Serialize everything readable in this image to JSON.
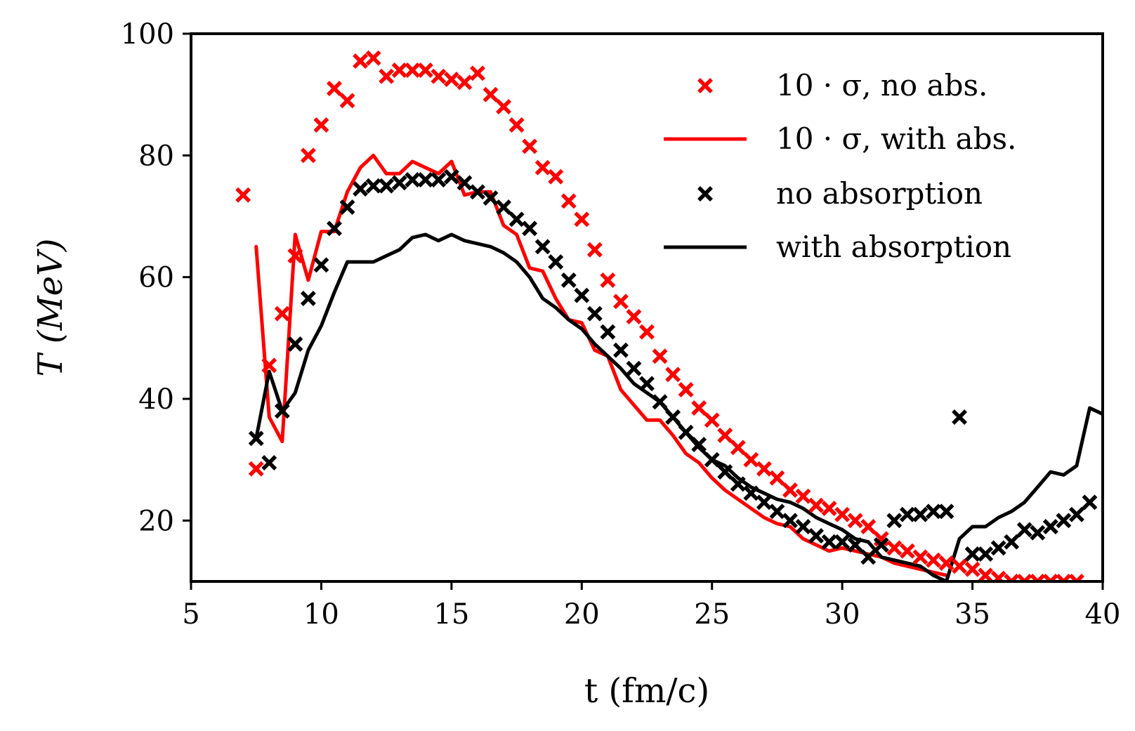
{
  "chart_data": {
    "type": "line",
    "title": "",
    "xlabel": "t (fm/c)",
    "ylabel": "T (MeV)",
    "xlim": [
      5,
      40
    ],
    "ylim": [
      10,
      100
    ],
    "xticks": [
      5,
      10,
      15,
      20,
      25,
      30,
      35,
      40
    ],
    "yticks": [
      20,
      40,
      60,
      80,
      100
    ],
    "grid": false,
    "legend_position": "top-right",
    "colors": {
      "red": "#ff0000",
      "black": "#000000",
      "axis": "#000000"
    },
    "series": [
      {
        "name": "10 · σ, no abs.",
        "style": "markers",
        "marker": "x",
        "color": "#ff0000",
        "x": [
          7.0,
          7.5,
          8.0,
          8.5,
          9.0,
          9.5,
          10.0,
          10.5,
          11.0,
          11.5,
          12.0,
          12.5,
          13.0,
          13.5,
          14.0,
          14.5,
          15.0,
          15.5,
          16.0,
          16.5,
          17.0,
          17.5,
          18.0,
          18.5,
          19.0,
          19.5,
          20.0,
          20.5,
          21.0,
          21.5,
          22.0,
          22.5,
          23.0,
          23.5,
          24.0,
          24.5,
          25.0,
          25.5,
          26.0,
          26.5,
          27.0,
          27.5,
          28.0,
          28.5,
          29.0,
          29.5,
          30.0,
          30.5,
          31.0,
          31.5,
          32.0,
          32.5,
          33.0,
          33.5,
          34.0,
          34.5,
          35.0,
          35.5,
          36.0,
          36.5,
          37.0,
          37.5,
          38.0,
          38.5,
          39.0
        ],
        "y": [
          73.5,
          28.5,
          45.5,
          54.0,
          63.5,
          80.0,
          85.0,
          91.0,
          89.0,
          95.5,
          96.0,
          93.0,
          94.0,
          94.0,
          94.0,
          93.0,
          92.5,
          92.0,
          93.5,
          90.0,
          88.0,
          85.0,
          81.5,
          78.0,
          76.5,
          72.5,
          69.5,
          64.5,
          59.5,
          56.0,
          53.5,
          51.0,
          47.0,
          44.0,
          41.5,
          38.5,
          36.5,
          34.0,
          32.0,
          30.0,
          28.5,
          27.0,
          25.0,
          24.0,
          22.5,
          22.0,
          21.0,
          20.0,
          19.0,
          17.0,
          15.5,
          15.0,
          14.0,
          13.5,
          13.0,
          12.5,
          12.0,
          11.0,
          10.5,
          10.0,
          10.0,
          10.0,
          10.0,
          10.0,
          10.0
        ]
      },
      {
        "name": "10 · σ, with abs.",
        "style": "line",
        "color": "#ff0000",
        "x": [
          7.5,
          8.0,
          8.5,
          9.0,
          9.5,
          10.0,
          10.5,
          11.0,
          11.5,
          12.0,
          12.5,
          13.0,
          13.5,
          14.0,
          14.5,
          15.0,
          15.5,
          16.0,
          16.5,
          17.0,
          17.5,
          18.0,
          18.5,
          19.0,
          19.5,
          20.0,
          20.5,
          21.0,
          21.5,
          22.0,
          22.5,
          23.0,
          23.5,
          24.0,
          24.5,
          25.0,
          25.5,
          26.0,
          26.5,
          27.0,
          27.5,
          28.0,
          28.5,
          29.0,
          29.5,
          30.0,
          30.5,
          31.0,
          31.5,
          32.0,
          32.5,
          33.0,
          33.5,
          34.0
        ],
        "y": [
          65.0,
          37.0,
          33.0,
          67.0,
          59.5,
          67.5,
          67.5,
          74.0,
          78.0,
          80.0,
          77.0,
          77.0,
          79.0,
          78.0,
          77.0,
          79.0,
          73.5,
          74.0,
          74.0,
          68.5,
          67.0,
          61.5,
          61.0,
          56.5,
          53.0,
          52.5,
          48.0,
          47.0,
          41.5,
          39.0,
          36.5,
          36.5,
          34.0,
          31.0,
          29.5,
          27.0,
          25.0,
          23.5,
          22.0,
          20.5,
          19.5,
          19.0,
          17.0,
          16.0,
          15.0,
          15.5,
          15.0,
          14.5,
          14.0,
          13.0,
          12.5,
          12.0,
          11.5,
          11.0
        ]
      },
      {
        "name": "no absorption",
        "style": "markers",
        "marker": "x",
        "color": "#000000",
        "x": [
          7.5,
          8.0,
          8.5,
          9.0,
          9.5,
          10.0,
          10.5,
          11.0,
          11.5,
          12.0,
          12.5,
          13.0,
          13.5,
          14.0,
          14.5,
          15.0,
          15.5,
          16.0,
          16.5,
          17.0,
          17.5,
          18.0,
          18.5,
          19.0,
          19.5,
          20.0,
          20.5,
          21.0,
          21.5,
          22.0,
          22.5,
          23.0,
          23.5,
          24.0,
          24.5,
          25.0,
          25.5,
          26.0,
          26.5,
          27.0,
          27.5,
          28.0,
          28.5,
          29.0,
          29.5,
          30.0,
          30.5,
          31.0,
          31.5,
          32.0,
          32.5,
          33.0,
          33.5,
          34.0,
          34.5,
          35.0,
          35.5,
          36.0,
          36.5,
          37.0,
          37.5,
          38.0,
          38.5,
          39.0,
          39.5
        ],
        "y": [
          33.5,
          29.5,
          38.0,
          49.0,
          56.5,
          62.0,
          68.0,
          71.5,
          74.5,
          75.0,
          75.0,
          75.5,
          76.0,
          76.0,
          76.0,
          76.5,
          75.5,
          74.0,
          73.0,
          71.5,
          69.5,
          68.0,
          65.0,
          62.5,
          59.5,
          57.0,
          54.0,
          51.0,
          48.0,
          45.0,
          42.5,
          39.5,
          37.0,
          34.5,
          32.5,
          30.0,
          28.0,
          26.0,
          24.5,
          23.0,
          21.5,
          20.0,
          19.0,
          17.5,
          16.5,
          16.5,
          16.0,
          14.0,
          16.0,
          20.0,
          21.0,
          21.0,
          21.5,
          21.5,
          37.0,
          14.5,
          14.5,
          15.5,
          16.5,
          18.5,
          18.0,
          19.0,
          20.0,
          21.0,
          23.0
        ]
      },
      {
        "name": "with absorption",
        "style": "line",
        "color": "#000000",
        "x": [
          7.5,
          8.0,
          8.5,
          9.0,
          9.5,
          10.0,
          10.5,
          11.0,
          11.5,
          12.0,
          12.5,
          13.0,
          13.5,
          14.0,
          14.5,
          15.0,
          15.5,
          16.0,
          16.5,
          17.0,
          17.5,
          18.0,
          18.5,
          19.0,
          19.5,
          20.0,
          20.5,
          21.0,
          21.5,
          22.0,
          22.5,
          23.0,
          23.5,
          24.0,
          24.5,
          25.0,
          25.5,
          26.0,
          26.5,
          27.0,
          27.5,
          28.0,
          28.5,
          29.0,
          29.5,
          30.0,
          30.5,
          31.0,
          31.5,
          32.0,
          32.5,
          33.0,
          33.5,
          34.0,
          34.5,
          35.0,
          35.5,
          36.0,
          36.5,
          37.0,
          37.5,
          38.0,
          38.5,
          39.0,
          39.5,
          40.0
        ],
        "y": [
          33.5,
          44.5,
          38.0,
          41.0,
          48.0,
          52.0,
          57.5,
          62.5,
          62.5,
          62.5,
          63.5,
          64.5,
          66.5,
          67.0,
          66.0,
          67.0,
          66.0,
          65.5,
          65.0,
          64.0,
          62.5,
          60.0,
          56.5,
          55.0,
          53.0,
          51.5,
          49.0,
          47.0,
          45.0,
          42.5,
          41.0,
          39.5,
          37.0,
          34.5,
          32.0,
          30.0,
          29.0,
          27.0,
          25.5,
          24.5,
          23.5,
          23.0,
          22.0,
          20.5,
          19.5,
          18.5,
          17.0,
          16.5,
          14.0,
          13.5,
          13.0,
          12.5,
          11.0,
          10.0,
          17.0,
          19.0,
          19.0,
          20.5,
          21.5,
          23.0,
          25.5,
          28.0,
          27.5,
          29.0,
          38.5,
          37.5
        ]
      }
    ],
    "legend": [
      {
        "label": "10 · σ, no abs.",
        "series": 0
      },
      {
        "label": "10 · σ, with abs.",
        "series": 1
      },
      {
        "label": "no absorption",
        "series": 2
      },
      {
        "label": "with absorption",
        "series": 3
      }
    ]
  }
}
